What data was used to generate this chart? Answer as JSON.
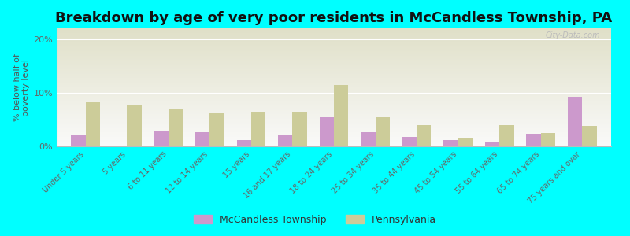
{
  "title": "Breakdown by age of very poor residents in McCandless Township, PA",
  "ylabel": "% below half of\npoverty level",
  "categories": [
    "Under 5 years",
    "5 years",
    "6 to 11 years",
    "12 to 14 years",
    "15 years",
    "16 and 17 years",
    "18 to 24 years",
    "25 to 34 years",
    "35 to 44 years",
    "45 to 54 years",
    "55 to 64 years",
    "65 to 74 years",
    "75 years and over"
  ],
  "mccandless_values": [
    2.0,
    0.0,
    2.8,
    2.7,
    1.2,
    2.2,
    5.5,
    2.7,
    1.8,
    1.2,
    0.7,
    2.3,
    9.2
  ],
  "pennsylvania_values": [
    8.2,
    7.8,
    7.0,
    6.2,
    6.5,
    6.5,
    11.5,
    5.5,
    4.0,
    1.5,
    4.0,
    2.5,
    3.8
  ],
  "mccandless_color": "#cc99cc",
  "pennsylvania_color": "#cccc99",
  "background_color": "#00ffff",
  "plot_bg_top": "#e0e0c8",
  "plot_bg_bottom": "#f8f8f8",
  "ylim": [
    0,
    22
  ],
  "yticks": [
    0,
    10,
    20
  ],
  "ytick_labels": [
    "0%",
    "10%",
    "20%"
  ],
  "bar_width": 0.35,
  "title_fontsize": 13,
  "legend_mccandless": "McCandless Township",
  "legend_pennsylvania": "Pennsylvania",
  "watermark": "City-Data.com"
}
